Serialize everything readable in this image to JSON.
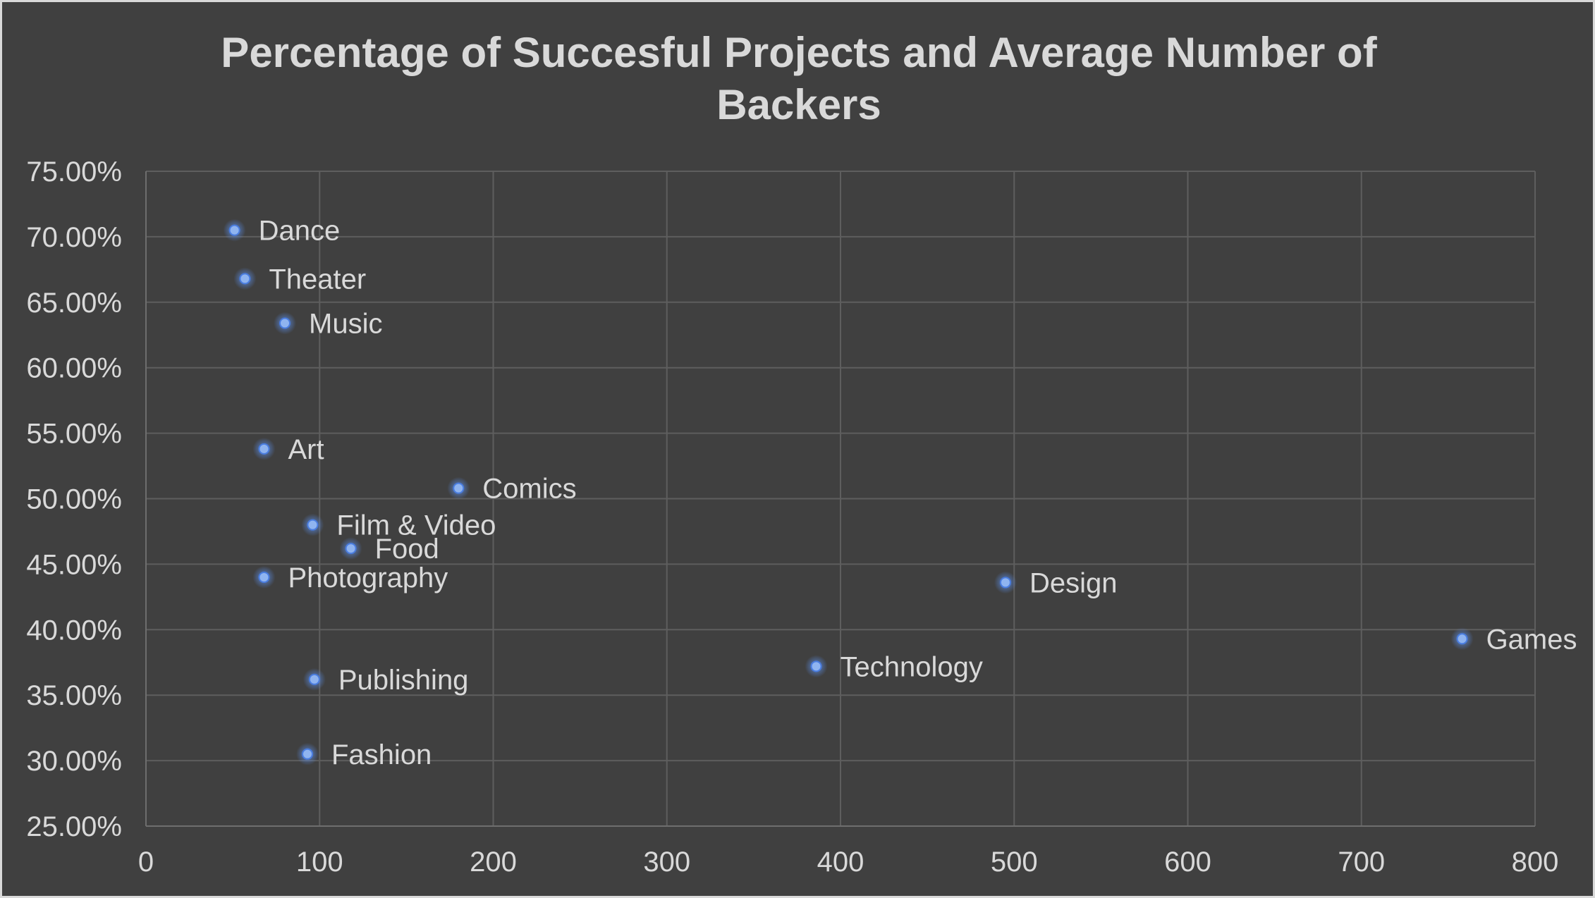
{
  "chart_data": {
    "type": "scatter",
    "title_lines": [
      "Percentage of Succesful Projects and Average Number of",
      "Backers"
    ],
    "xlabel": "",
    "ylabel": "",
    "xlim": [
      0,
      800
    ],
    "ylim": [
      0.25,
      0.75
    ],
    "x_ticks": [
      0,
      100,
      200,
      300,
      400,
      500,
      600,
      700,
      800
    ],
    "x_tick_labels": [
      "0",
      "100",
      "200",
      "300",
      "400",
      "500",
      "600",
      "700",
      "800"
    ],
    "y_ticks": [
      0.25,
      0.3,
      0.35,
      0.4,
      0.45,
      0.5,
      0.55,
      0.6,
      0.65,
      0.7,
      0.75
    ],
    "y_tick_labels": [
      "25.00%",
      "30.00%",
      "35.00%",
      "40.00%",
      "45.00%",
      "50.00%",
      "55.00%",
      "60.00%",
      "65.00%",
      "70.00%",
      "75.00%"
    ],
    "grid": true,
    "legend": "none",
    "marker_color": "#8fb4f0",
    "points": [
      {
        "label": "Dance",
        "x": 51,
        "y": 0.705
      },
      {
        "label": "Theater",
        "x": 57,
        "y": 0.668
      },
      {
        "label": "Music",
        "x": 80,
        "y": 0.634
      },
      {
        "label": "Art",
        "x": 68,
        "y": 0.538
      },
      {
        "label": "Comics",
        "x": 180,
        "y": 0.508
      },
      {
        "label": "Film & Video",
        "x": 96,
        "y": 0.48
      },
      {
        "label": "Food",
        "x": 118,
        "y": 0.462
      },
      {
        "label": "Photography",
        "x": 68,
        "y": 0.44
      },
      {
        "label": "Design",
        "x": 495,
        "y": 0.436
      },
      {
        "label": "Games",
        "x": 758,
        "y": 0.393
      },
      {
        "label": "Technology",
        "x": 386,
        "y": 0.372
      },
      {
        "label": "Publishing",
        "x": 97,
        "y": 0.362
      },
      {
        "label": "Fashion",
        "x": 93,
        "y": 0.305
      }
    ]
  }
}
